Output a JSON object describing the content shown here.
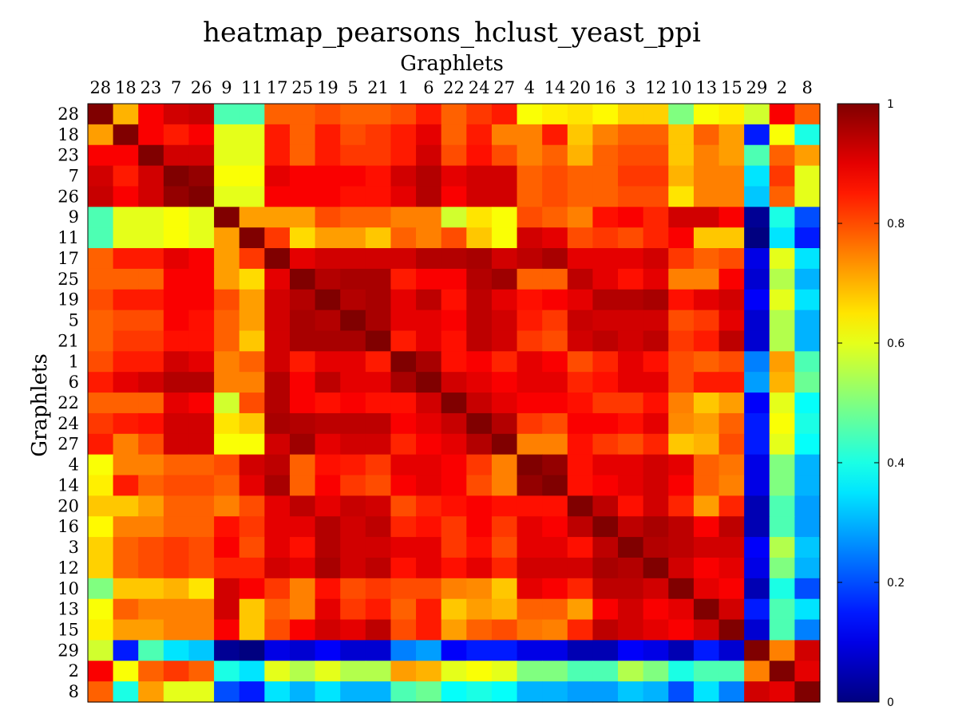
{
  "chart_data": {
    "type": "heatmap",
    "title": "heatmap_pearsons_hclust_yeast_ppi",
    "xlabel": "Graphlets",
    "ylabel": "Graphlets",
    "labels": [
      "28",
      "18",
      "23",
      "7",
      "26",
      "9",
      "11",
      "17",
      "25",
      "19",
      "5",
      "21",
      "1",
      "6",
      "22",
      "24",
      "27",
      "4",
      "14",
      "20",
      "16",
      "3",
      "12",
      "10",
      "13",
      "15",
      "29",
      "2",
      "8"
    ],
    "colorbar": {
      "range": [
        0,
        1
      ],
      "ticks": [
        "0",
        "0.2",
        "0.4",
        "0.6",
        "0.8",
        "1"
      ],
      "colormap": "jet"
    },
    "matrix": [
      [
        1.0,
        0.7,
        0.88,
        0.92,
        0.93,
        0.45,
        0.45,
        0.78,
        0.78,
        0.8,
        0.78,
        0.78,
        0.8,
        0.85,
        0.78,
        0.82,
        0.85,
        0.62,
        0.64,
        0.65,
        0.63,
        0.67,
        0.67,
        0.5,
        0.62,
        0.64,
        0.58,
        0.88,
        0.78
      ],
      [
        0.72,
        1.0,
        0.88,
        0.85,
        0.88,
        0.6,
        0.6,
        0.85,
        0.78,
        0.85,
        0.8,
        0.82,
        0.85,
        0.9,
        0.78,
        0.85,
        0.75,
        0.75,
        0.85,
        0.68,
        0.75,
        0.78,
        0.78,
        0.68,
        0.78,
        0.72,
        0.15,
        0.62,
        0.4
      ],
      [
        0.88,
        0.88,
        1.0,
        0.92,
        0.92,
        0.6,
        0.6,
        0.85,
        0.78,
        0.85,
        0.82,
        0.82,
        0.85,
        0.92,
        0.8,
        0.86,
        0.8,
        0.75,
        0.78,
        0.7,
        0.78,
        0.8,
        0.8,
        0.68,
        0.75,
        0.72,
        0.45,
        0.78,
        0.72
      ],
      [
        0.92,
        0.85,
        0.92,
        1.0,
        0.98,
        0.62,
        0.62,
        0.9,
        0.88,
        0.88,
        0.88,
        0.86,
        0.92,
        0.95,
        0.9,
        0.92,
        0.92,
        0.78,
        0.8,
        0.78,
        0.78,
        0.82,
        0.82,
        0.7,
        0.75,
        0.75,
        0.35,
        0.82,
        0.6
      ],
      [
        0.93,
        0.88,
        0.92,
        0.98,
        1.0,
        0.6,
        0.6,
        0.88,
        0.88,
        0.88,
        0.86,
        0.86,
        0.9,
        0.95,
        0.88,
        0.92,
        0.92,
        0.78,
        0.8,
        0.78,
        0.78,
        0.8,
        0.8,
        0.65,
        0.75,
        0.75,
        0.32,
        0.78,
        0.6
      ],
      [
        0.45,
        0.6,
        0.6,
        0.62,
        0.6,
        1.0,
        0.72,
        0.72,
        0.72,
        0.8,
        0.78,
        0.78,
        0.75,
        0.75,
        0.58,
        0.65,
        0.62,
        0.8,
        0.78,
        0.75,
        0.86,
        0.88,
        0.84,
        0.92,
        0.92,
        0.88,
        0.02,
        0.4,
        0.2
      ],
      [
        0.45,
        0.6,
        0.6,
        0.62,
        0.6,
        0.72,
        1.0,
        0.82,
        0.66,
        0.72,
        0.72,
        0.68,
        0.78,
        0.75,
        0.8,
        0.68,
        0.62,
        0.92,
        0.9,
        0.8,
        0.82,
        0.8,
        0.84,
        0.88,
        0.68,
        0.68,
        0.0,
        0.35,
        0.15
      ],
      [
        0.78,
        0.85,
        0.85,
        0.9,
        0.88,
        0.72,
        0.82,
        1.0,
        0.9,
        0.92,
        0.92,
        0.92,
        0.92,
        0.95,
        0.95,
        0.96,
        0.92,
        0.94,
        0.96,
        0.9,
        0.9,
        0.9,
        0.92,
        0.82,
        0.78,
        0.8,
        0.1,
        0.6,
        0.35
      ],
      [
        0.78,
        0.78,
        0.78,
        0.88,
        0.88,
        0.72,
        0.66,
        0.9,
        1.0,
        0.95,
        0.96,
        0.96,
        0.85,
        0.88,
        0.88,
        0.95,
        0.97,
        0.78,
        0.78,
        0.94,
        0.9,
        0.86,
        0.9,
        0.75,
        0.75,
        0.88,
        0.08,
        0.55,
        0.3
      ],
      [
        0.8,
        0.85,
        0.85,
        0.88,
        0.88,
        0.8,
        0.72,
        0.92,
        0.95,
        1.0,
        0.95,
        0.96,
        0.9,
        0.94,
        0.86,
        0.94,
        0.9,
        0.86,
        0.88,
        0.9,
        0.95,
        0.95,
        0.96,
        0.86,
        0.9,
        0.92,
        0.12,
        0.6,
        0.35
      ],
      [
        0.78,
        0.8,
        0.8,
        0.88,
        0.86,
        0.78,
        0.72,
        0.92,
        0.96,
        0.95,
        1.0,
        0.96,
        0.9,
        0.9,
        0.88,
        0.94,
        0.92,
        0.85,
        0.82,
        0.93,
        0.92,
        0.92,
        0.92,
        0.8,
        0.82,
        0.9,
        0.08,
        0.55,
        0.3
      ],
      [
        0.78,
        0.82,
        0.82,
        0.86,
        0.86,
        0.78,
        0.68,
        0.92,
        0.96,
        0.96,
        0.96,
        1.0,
        0.85,
        0.9,
        0.86,
        0.94,
        0.92,
        0.82,
        0.8,
        0.92,
        0.94,
        0.92,
        0.94,
        0.82,
        0.85,
        0.94,
        0.08,
        0.55,
        0.3
      ],
      [
        0.8,
        0.85,
        0.85,
        0.92,
        0.9,
        0.75,
        0.78,
        0.92,
        0.85,
        0.9,
        0.9,
        0.85,
        1.0,
        0.96,
        0.86,
        0.88,
        0.84,
        0.9,
        0.88,
        0.8,
        0.84,
        0.9,
        0.86,
        0.8,
        0.78,
        0.8,
        0.25,
        0.72,
        0.45
      ],
      [
        0.85,
        0.9,
        0.92,
        0.95,
        0.95,
        0.75,
        0.75,
        0.95,
        0.88,
        0.94,
        0.9,
        0.9,
        0.96,
        1.0,
        0.92,
        0.9,
        0.88,
        0.9,
        0.9,
        0.84,
        0.86,
        0.9,
        0.9,
        0.8,
        0.85,
        0.85,
        0.28,
        0.7,
        0.48
      ],
      [
        0.78,
        0.78,
        0.78,
        0.9,
        0.88,
        0.58,
        0.8,
        0.95,
        0.88,
        0.86,
        0.88,
        0.86,
        0.86,
        0.92,
        1.0,
        0.93,
        0.9,
        0.88,
        0.88,
        0.86,
        0.82,
        0.82,
        0.86,
        0.75,
        0.68,
        0.72,
        0.12,
        0.6,
        0.38
      ],
      [
        0.82,
        0.85,
        0.86,
        0.92,
        0.92,
        0.65,
        0.68,
        0.96,
        0.95,
        0.94,
        0.94,
        0.94,
        0.88,
        0.9,
        0.93,
        1.0,
        0.95,
        0.82,
        0.8,
        0.88,
        0.88,
        0.86,
        0.9,
        0.74,
        0.72,
        0.78,
        0.15,
        0.62,
        0.4
      ],
      [
        0.85,
        0.75,
        0.8,
        0.92,
        0.92,
        0.62,
        0.62,
        0.92,
        0.97,
        0.9,
        0.92,
        0.92,
        0.84,
        0.88,
        0.9,
        0.95,
        1.0,
        0.75,
        0.75,
        0.86,
        0.82,
        0.8,
        0.84,
        0.68,
        0.7,
        0.8,
        0.15,
        0.6,
        0.38
      ],
      [
        0.62,
        0.75,
        0.75,
        0.78,
        0.78,
        0.8,
        0.92,
        0.94,
        0.78,
        0.86,
        0.85,
        0.82,
        0.9,
        0.9,
        0.88,
        0.82,
        0.75,
        1.0,
        0.98,
        0.86,
        0.9,
        0.9,
        0.92,
        0.9,
        0.78,
        0.76,
        0.1,
        0.5,
        0.3
      ],
      [
        0.64,
        0.85,
        0.78,
        0.8,
        0.8,
        0.78,
        0.9,
        0.96,
        0.78,
        0.88,
        0.82,
        0.8,
        0.88,
        0.9,
        0.88,
        0.8,
        0.75,
        0.98,
        1.0,
        0.86,
        0.88,
        0.9,
        0.92,
        0.88,
        0.78,
        0.75,
        0.1,
        0.5,
        0.3
      ],
      [
        0.68,
        0.68,
        0.72,
        0.78,
        0.78,
        0.75,
        0.8,
        0.9,
        0.94,
        0.9,
        0.93,
        0.92,
        0.8,
        0.84,
        0.86,
        0.88,
        0.86,
        0.86,
        0.86,
        1.0,
        0.94,
        0.86,
        0.92,
        0.84,
        0.72,
        0.84,
        0.05,
        0.45,
        0.28
      ],
      [
        0.63,
        0.75,
        0.75,
        0.78,
        0.78,
        0.86,
        0.82,
        0.9,
        0.9,
        0.95,
        0.92,
        0.94,
        0.84,
        0.86,
        0.82,
        0.88,
        0.82,
        0.9,
        0.88,
        0.94,
        1.0,
        0.94,
        0.96,
        0.94,
        0.88,
        0.94,
        0.05,
        0.45,
        0.28
      ],
      [
        0.67,
        0.78,
        0.8,
        0.82,
        0.8,
        0.88,
        0.8,
        0.9,
        0.86,
        0.95,
        0.92,
        0.92,
        0.9,
        0.9,
        0.82,
        0.86,
        0.8,
        0.9,
        0.9,
        0.86,
        0.94,
        1.0,
        0.95,
        0.94,
        0.92,
        0.92,
        0.12,
        0.55,
        0.32
      ],
      [
        0.67,
        0.78,
        0.8,
        0.82,
        0.8,
        0.84,
        0.84,
        0.92,
        0.9,
        0.96,
        0.92,
        0.94,
        0.86,
        0.9,
        0.86,
        0.9,
        0.84,
        0.92,
        0.92,
        0.92,
        0.96,
        0.95,
        1.0,
        0.92,
        0.88,
        0.9,
        0.1,
        0.5,
        0.3
      ],
      [
        0.5,
        0.68,
        0.68,
        0.7,
        0.65,
        0.92,
        0.88,
        0.82,
        0.75,
        0.86,
        0.8,
        0.82,
        0.8,
        0.8,
        0.75,
        0.74,
        0.68,
        0.9,
        0.88,
        0.84,
        0.94,
        0.94,
        0.92,
        1.0,
        0.9,
        0.88,
        0.05,
        0.4,
        0.2
      ],
      [
        0.62,
        0.78,
        0.75,
        0.75,
        0.75,
        0.92,
        0.68,
        0.78,
        0.75,
        0.9,
        0.82,
        0.85,
        0.78,
        0.85,
        0.68,
        0.72,
        0.7,
        0.78,
        0.78,
        0.72,
        0.88,
        0.92,
        0.88,
        0.9,
        1.0,
        0.92,
        0.15,
        0.45,
        0.35
      ],
      [
        0.64,
        0.72,
        0.72,
        0.75,
        0.75,
        0.88,
        0.68,
        0.8,
        0.88,
        0.92,
        0.9,
        0.94,
        0.8,
        0.85,
        0.72,
        0.78,
        0.8,
        0.76,
        0.75,
        0.84,
        0.94,
        0.92,
        0.9,
        0.88,
        0.92,
        1.0,
        0.08,
        0.45,
        0.25
      ],
      [
        0.58,
        0.15,
        0.45,
        0.35,
        0.32,
        0.02,
        0.0,
        0.1,
        0.08,
        0.12,
        0.08,
        0.08,
        0.25,
        0.28,
        0.12,
        0.15,
        0.15,
        0.1,
        0.1,
        0.05,
        0.05,
        0.12,
        0.1,
        0.05,
        0.15,
        0.08,
        1.0,
        0.75,
        0.92
      ],
      [
        0.88,
        0.62,
        0.78,
        0.82,
        0.78,
        0.4,
        0.35,
        0.6,
        0.55,
        0.6,
        0.55,
        0.55,
        0.72,
        0.7,
        0.6,
        0.62,
        0.6,
        0.5,
        0.5,
        0.45,
        0.45,
        0.55,
        0.5,
        0.4,
        0.45,
        0.45,
        0.75,
        1.0,
        0.9
      ],
      [
        0.78,
        0.4,
        0.72,
        0.6,
        0.6,
        0.2,
        0.15,
        0.35,
        0.3,
        0.35,
        0.3,
        0.3,
        0.45,
        0.48,
        0.38,
        0.4,
        0.38,
        0.3,
        0.3,
        0.28,
        0.28,
        0.32,
        0.3,
        0.2,
        0.35,
        0.25,
        0.92,
        0.9,
        1.0
      ]
    ]
  }
}
